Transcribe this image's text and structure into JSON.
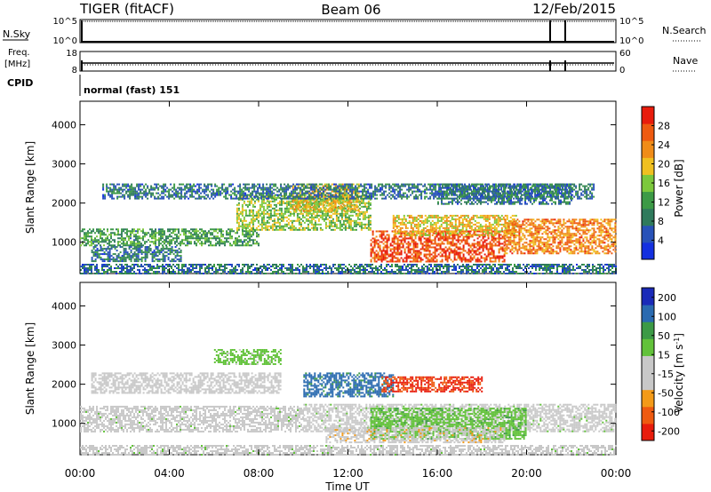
{
  "header": {
    "station": "TIGER (fitACF)",
    "beam": "Beam 06",
    "date": "12/Feb/2015"
  },
  "status_panels": {
    "nsky": {
      "label": "N.Sky",
      "tick_top": "10^5",
      "tick_bottom": "10^0"
    },
    "nsearch": {
      "label": "N.Search",
      "tick_top": "10^5",
      "tick_bottom": "10^0"
    },
    "freq": {
      "label_line1": "Freq.",
      "label_line2": "[MHz]",
      "tick_top": "18",
      "tick_bottom": "8"
    },
    "nave": {
      "label": "Nave",
      "tick_top": "60",
      "tick_bottom": "0"
    },
    "cpid": {
      "label": "CPID",
      "text": "normal (fast) 151"
    }
  },
  "x_axis": {
    "title": "Time UT",
    "ticks": [
      "00:00",
      "04:00",
      "08:00",
      "12:00",
      "16:00",
      "20:00",
      "00:00"
    ]
  },
  "colors": {
    "power_scale": [
      "#1430e0",
      "#2852b8",
      "#2f7a5c",
      "#3c9a46",
      "#7cc83c",
      "#f0c020",
      "#f08c18",
      "#ee5a10",
      "#e81c0c"
    ],
    "velocity_scale": [
      "#e81c0c",
      "#ee5a10",
      "#f39a18",
      "#c8c8c8",
      "#c8c8c8",
      "#62c23a",
      "#3c9a46",
      "#2a6ab0",
      "#1a2ab8"
    ]
  },
  "chart_data": [
    {
      "type": "heatmap",
      "name": "power",
      "xlabel": "",
      "ylabel": "Slant Range [km]",
      "xlim": [
        0,
        24
      ],
      "ylim": [
        200,
        4600
      ],
      "yticks": [
        "1000",
        "2000",
        "3000",
        "4000"
      ],
      "colorbar": {
        "title": "Power [dB]",
        "ticks": [
          "4",
          "8",
          "12",
          "16",
          "20",
          "24",
          "28"
        ],
        "range": [
          0,
          32
        ]
      },
      "bands": [
        {
          "t_start": 0.0,
          "t_end": 8.0,
          "r_low": 900,
          "r_high": 1350,
          "level": 12
        },
        {
          "t_start": 0.5,
          "t_end": 4.5,
          "r_low": 500,
          "r_high": 900,
          "level": 8
        },
        {
          "t_start": 7.0,
          "t_end": 13.0,
          "r_low": 1300,
          "r_high": 2200,
          "level": 16
        },
        {
          "t_start": 9.5,
          "t_end": 12.5,
          "r_low": 1800,
          "r_high": 2500,
          "level": 20
        },
        {
          "t_start": 13.0,
          "t_end": 19.0,
          "r_low": 500,
          "r_high": 1300,
          "level": 28
        },
        {
          "t_start": 14.0,
          "t_end": 19.5,
          "r_low": 1200,
          "r_high": 1700,
          "level": 20
        },
        {
          "t_start": 19.0,
          "t_end": 24.0,
          "r_low": 700,
          "r_high": 1600,
          "level": 24
        },
        {
          "t_start": 16.0,
          "t_end": 22.0,
          "r_low": 2000,
          "r_high": 2500,
          "level": 8
        },
        {
          "t_start": 1.0,
          "t_end": 23.0,
          "r_low": 2100,
          "r_high": 2500,
          "level": 8
        },
        {
          "t_start": 0.0,
          "t_end": 24.0,
          "r_low": 200,
          "r_high": 450,
          "level": 8
        }
      ]
    },
    {
      "type": "heatmap",
      "name": "velocity",
      "xlabel": "Time UT",
      "ylabel": "Slant Range [km]",
      "xlim": [
        0,
        24
      ],
      "ylim": [
        200,
        4600
      ],
      "yticks": [
        "1000",
        "2000",
        "3000",
        "4000"
      ],
      "colorbar": {
        "title": "Velocity [m s^-1]",
        "ticks": [
          "-200",
          "-100",
          "-50",
          "-15",
          "15",
          "50",
          "100",
          "200"
        ],
        "range": [
          -250,
          250
        ]
      },
      "bands": [
        {
          "t_start": 0.0,
          "t_end": 10.0,
          "r_low": 800,
          "r_high": 1450,
          "level": 0
        },
        {
          "t_start": 10.0,
          "t_end": 24.0,
          "r_low": 800,
          "r_high": 1500,
          "level": 0
        },
        {
          "t_start": 0.5,
          "t_end": 9.0,
          "r_low": 1800,
          "r_high": 2300,
          "level": -40
        },
        {
          "t_start": 10.0,
          "t_end": 14.0,
          "r_low": 1700,
          "r_high": 2300,
          "level": 160
        },
        {
          "t_start": 13.0,
          "t_end": 20.0,
          "r_low": 600,
          "r_high": 1400,
          "level": 60
        },
        {
          "t_start": 11.0,
          "t_end": 19.0,
          "r_low": 500,
          "r_high": 900,
          "level": -60
        },
        {
          "t_start": 13.5,
          "t_end": 18.0,
          "r_low": 1800,
          "r_high": 2200,
          "level": -200
        },
        {
          "t_start": 6.0,
          "t_end": 9.0,
          "r_low": 2500,
          "r_high": 2900,
          "level": 50
        },
        {
          "t_start": 0.0,
          "t_end": 24.0,
          "r_low": 200,
          "r_high": 450,
          "level": 0
        }
      ]
    }
  ]
}
